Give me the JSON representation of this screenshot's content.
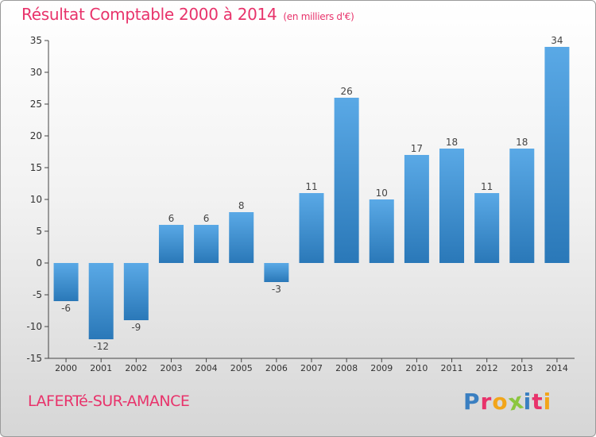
{
  "chart_data": {
    "type": "bar",
    "title": "Résultat Comptable 2000 à 2014",
    "subtitle": "(en milliers d'€)",
    "categories": [
      "2000",
      "2001",
      "2002",
      "2003",
      "2004",
      "2005",
      "2006",
      "2007",
      "2008",
      "2009",
      "2010",
      "2011",
      "2012",
      "2013",
      "2014"
    ],
    "values": [
      -6,
      -12,
      -9,
      6,
      6,
      8,
      -3,
      11,
      26,
      10,
      17,
      18,
      11,
      18,
      34
    ],
    "ylim": [
      -15,
      35
    ],
    "yticks": [
      -15,
      -10,
      -5,
      0,
      5,
      10,
      15,
      20,
      25,
      30,
      35
    ],
    "xlabel": "",
    "ylabel": "",
    "grid": false
  },
  "footer": {
    "commune": "LAFERTé-SUR-AMANCE",
    "brand_letters": [
      "P",
      "r",
      "o",
      "x",
      "i",
      "t",
      "i"
    ]
  },
  "colors": {
    "bar_light": "#5aa9e6",
    "bar_dark": "#2a78b8",
    "title": "#e8336b",
    "axis": "#444444",
    "brand": [
      "#3a7fc1",
      "#e8336b",
      "#f2a51a",
      "#8cc63f",
      "#3a7fc1",
      "#e8336b",
      "#f2a51a"
    ]
  }
}
